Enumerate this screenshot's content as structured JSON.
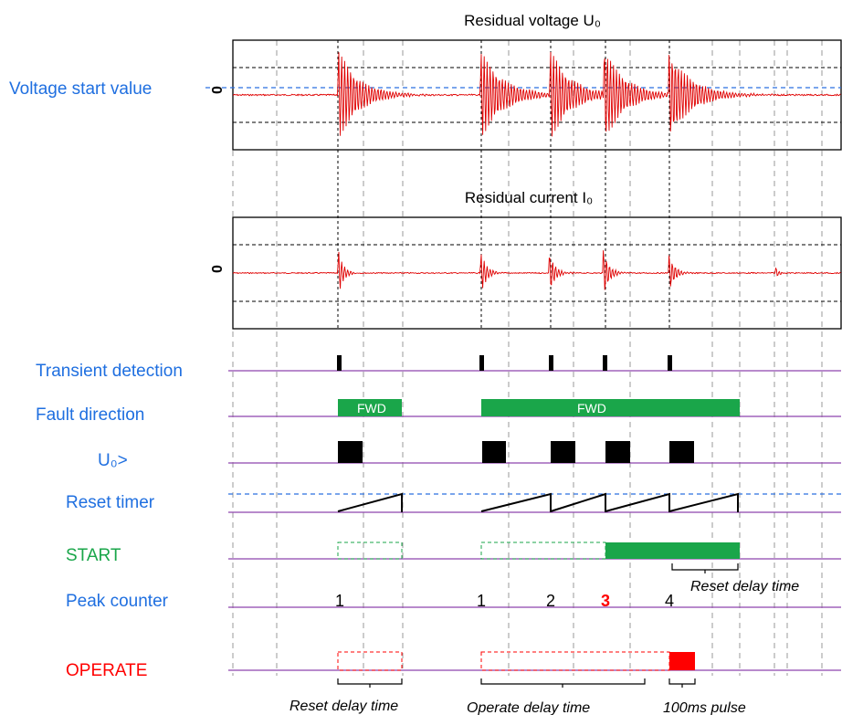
{
  "titles": {
    "voltage": "Residual voltage U₀",
    "current": "Residual current I₀"
  },
  "plot_labels": {
    "voltage_start": "Voltage start value",
    "zero_voltage": "0",
    "zero_current": "0"
  },
  "signals": {
    "transient": "Transient detection",
    "fault_direction": "Fault direction",
    "u0": "U₀>",
    "reset_timer": "Reset timer",
    "start": "START",
    "peak_counter": "Peak counter",
    "operate": "OPERATE"
  },
  "direction_labels": {
    "fwd1": "FWD",
    "fwd2": "FWD"
  },
  "peak_counts": {
    "c1": "1",
    "c2": "1",
    "c3": "2",
    "c4": "3",
    "c5": "4"
  },
  "annotations": {
    "reset_delay_right": "Reset delay time",
    "reset_delay_bottom": "Reset delay time",
    "operate_delay": "Operate delay time",
    "pulse": "100ms pulse"
  },
  "colors": {
    "label_blue": "#1f6fe0",
    "start_green": "#1aa64a",
    "operate_red": "#ff0000",
    "waveform_red": "#e00000",
    "baseline_purple": "#8e44ad",
    "threshold_blue": "#2b6fe0",
    "fill_green": "#1aa64a"
  }
}
